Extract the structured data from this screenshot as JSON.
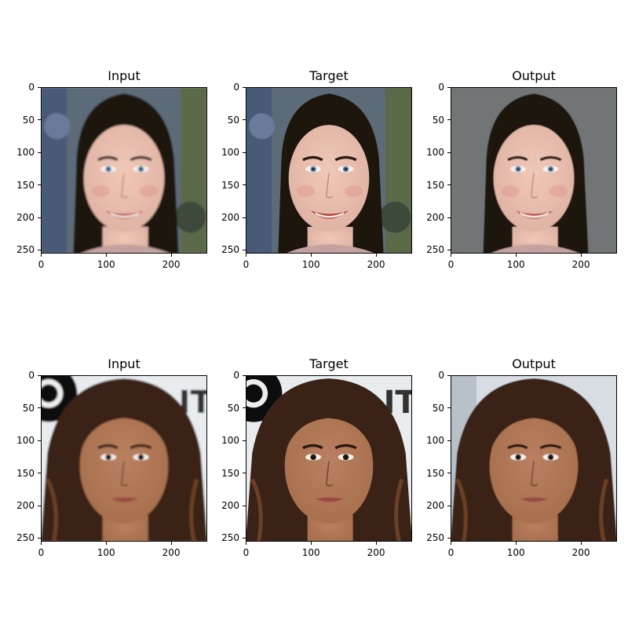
{
  "panels": [
    {
      "title": "Input",
      "row": 0,
      "col": 0,
      "image": "portrait-smiling-woman-dark-hair-blurred-painted-background",
      "variant": "input"
    },
    {
      "title": "Target",
      "row": 0,
      "col": 1,
      "image": "portrait-smiling-woman-dark-hair-sharp-painted-background",
      "variant": "target"
    },
    {
      "title": "Output",
      "row": 0,
      "col": 2,
      "image": "portrait-smiling-woman-generated-gray-background",
      "variant": "output"
    },
    {
      "title": "Input",
      "row": 1,
      "col": 0,
      "image": "portrait-woman-curly-brown-hair-blurred-press-background",
      "variant": "input"
    },
    {
      "title": "Target",
      "row": 1,
      "col": 1,
      "image": "portrait-woman-curly-brown-hair-sharp-press-background",
      "variant": "target"
    },
    {
      "title": "Output",
      "row": 1,
      "col": 2,
      "image": "portrait-woman-generated-light-background",
      "variant": "output"
    }
  ],
  "axes": {
    "x_ticks": [
      "0",
      "100",
      "200"
    ],
    "y_ticks": [
      "0",
      "50",
      "100",
      "150",
      "200",
      "250"
    ],
    "x_tick_values": [
      0,
      100,
      200
    ],
    "y_tick_values": [
      0,
      50,
      100,
      150,
      200,
      250
    ],
    "extent": 256
  },
  "colors": {
    "row1_skin": "#e0b4a4",
    "row1_hair": "#1a1210",
    "row1_bg": "#5d6a78",
    "row1_bg_output": "#6e7070",
    "row2_skin": "#a8704e",
    "row2_hair": "#3a2416",
    "row2_bg": "#e8ecef",
    "row2_bg_output": "#d8dde3",
    "lips_row1": "#b23a3a",
    "lips_row2": "#9a4a44",
    "eyes_row1": "#5c86a8",
    "eyes_row2": "#2a1a10"
  }
}
